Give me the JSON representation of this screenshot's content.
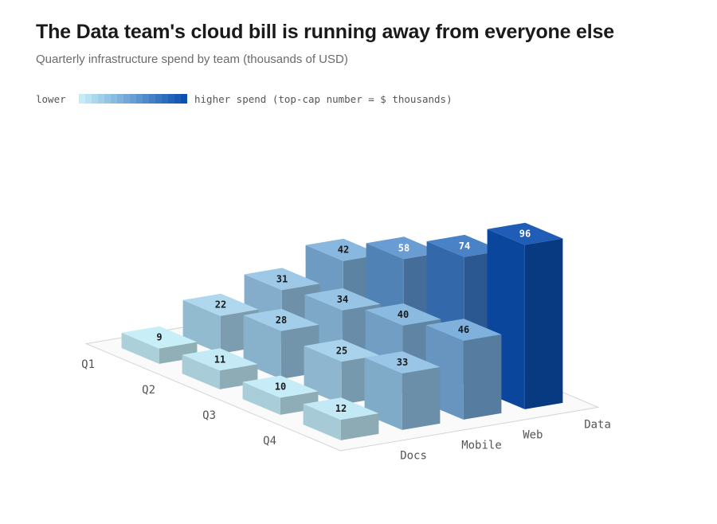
{
  "title": "The Data team's cloud bill is running away from everyone else",
  "subtitle": "Quarterly infrastructure spend by team (thousands of USD)",
  "legend": {
    "low_label": "lower",
    "high_label": "higher spend (top-cap number = $ thousands)",
    "color_low": "#c3ecf7",
    "color_high": "#0b4fb0"
  },
  "chart_data": {
    "type": "bar",
    "subtype": "3d-grid",
    "categories": [
      "Q1",
      "Q2",
      "Q3",
      "Q4"
    ],
    "series": [
      {
        "name": "Docs",
        "values": [
          9,
          11,
          10,
          12
        ]
      },
      {
        "name": "Mobile",
        "values": [
          22,
          28,
          25,
          33
        ]
      },
      {
        "name": "Web",
        "values": [
          31,
          34,
          40,
          46
        ]
      },
      {
        "name": "Data",
        "values": [
          42,
          58,
          74,
          96
        ]
      }
    ],
    "title": "The Data team's cloud bill is running away from everyone else",
    "subtitle": "Quarterly infrastructure spend by team (thousands of USD)",
    "xlabel": "",
    "ylabel": "",
    "data_labels": true,
    "legend_position": "top-left",
    "grid": false
  }
}
